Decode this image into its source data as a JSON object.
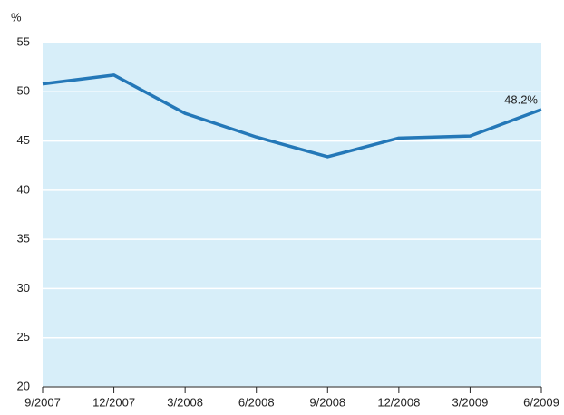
{
  "chart_data": {
    "type": "line",
    "y_label": "%",
    "categories": [
      "9/2007",
      "12/2007",
      "3/2008",
      "6/2008",
      "9/2008",
      "12/2008",
      "3/2009",
      "6/2009"
    ],
    "series": [
      {
        "color": "#2478b8",
        "values": [
          50.8,
          51.7,
          47.8,
          45.4,
          43.4,
          45.3,
          45.5,
          48.2
        ],
        "value_labels": [
          null,
          null,
          null,
          null,
          null,
          null,
          null,
          "48.2%"
        ]
      }
    ],
    "ylim": [
      20,
      55
    ],
    "yticks": [
      20,
      25,
      30,
      35,
      40,
      45,
      50,
      55
    ],
    "grid": true,
    "background": "#d7eef9"
  }
}
